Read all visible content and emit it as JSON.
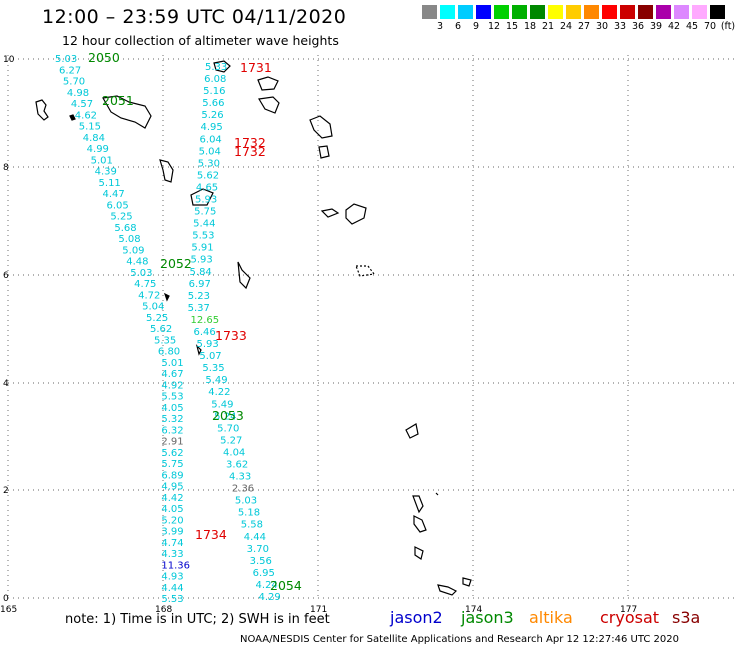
{
  "header": {
    "title": "12:00 – 23:59 UTC 04/11/2020",
    "subtitle": "12 hour collection of altimeter wave heights"
  },
  "legend": {
    "colors": [
      "#888888",
      "#00ffff",
      "#00ccff",
      "#0000ff",
      "#00d000",
      "#00b000",
      "#008800",
      "#ffff00",
      "#ffcc00",
      "#ff8800",
      "#ff0000",
      "#cc0000",
      "#880000",
      "#aa00aa",
      "#dd88ff",
      "#ffaaff",
      "#000000"
    ],
    "labels": [
      "3",
      "6",
      "9",
      "12",
      "15",
      "18",
      "21",
      "24",
      "27",
      "30",
      "33",
      "36",
      "39",
      "42",
      "45",
      "70",
      "(ft)"
    ]
  },
  "axes": {
    "x_ticks": [
      "165",
      "168",
      "171",
      "174",
      "177"
    ],
    "y_ticks": [
      "0",
      "2",
      "4",
      "6",
      "8",
      "10"
    ]
  },
  "tracks": [
    {
      "times": [
        {
          "label": "2050",
          "y": 10
        },
        {
          "label": "2051",
          "y": 9.1
        },
        {
          "label": "2052",
          "y": 6.2
        },
        {
          "label": "2053",
          "y": 3.3
        },
        {
          "label": "2054",
          "y": 0.3
        }
      ],
      "values": [
        "5.03",
        "6.27",
        "5.70",
        "4.98",
        "4.57",
        "4.62",
        "5.15",
        "4.84",
        "4.99",
        "5.01",
        "4.39",
        "5.11",
        "4.47",
        "6.05",
        "5.25",
        "5.68",
        "5.08",
        "5.09",
        "4.48",
        "5.03",
        "4.75",
        "4.72",
        "5.04",
        "5.25",
        "5.62",
        "5.35",
        "6.80",
        "5.01",
        "4.67",
        "4.92",
        "5.53",
        "4.05",
        "5.32",
        "6.32",
        "2.91",
        "5.62",
        "5.75",
        "6.89",
        "4.95",
        "4.42",
        "4.05",
        "5.20",
        "3.99",
        "4.74",
        "4.33",
        "11.36",
        "4.93",
        "4.44",
        "5.53"
      ]
    },
    {
      "times": [
        {
          "label": "1731",
          "y": 9.8
        },
        {
          "label": "1732",
          "y": 8.5
        },
        {
          "label": "1732",
          "y": 8.4
        },
        {
          "label": "1733",
          "y": 4.9
        },
        {
          "label": "1734",
          "y": 1.1
        }
      ],
      "values": [
        "5.33",
        "6.08",
        "5.16",
        "5.66",
        "5.26",
        "4.95",
        "6.04",
        "5.04",
        "5.30",
        "5.62",
        "4.65",
        "5.93",
        "5.75",
        "5.44",
        "5.53",
        "5.91",
        "5.93",
        "5.84",
        "6.97",
        "5.23",
        "5.37",
        "12.65",
        "6.46",
        "5.93",
        "5.07",
        "5.35",
        "5.49",
        "4.22",
        "5.49",
        "5.24",
        "5.70",
        "5.27",
        "4.04",
        "3.62",
        "4.33",
        "2.36",
        "5.03",
        "5.18",
        "5.58",
        "4.44",
        "3.70",
        "3.56",
        "6.95",
        "4.24",
        "4.29"
      ]
    }
  ],
  "footer": {
    "note": "note:  1) Time is in UTC;  2) SWH is in feet",
    "satellites": [
      {
        "name": "jason2",
        "color": "#0000cc"
      },
      {
        "name": "jason3",
        "color": "#008800"
      },
      {
        "name": "altika",
        "color": "#ff8800"
      },
      {
        "name": "cryosat",
        "color": "#cc0000"
      },
      {
        "name": "s3a",
        "color": "#880000"
      }
    ],
    "credit": "NOAA/NESDIS Center for Satellite Applications and Research     Apr 12 12:27:46 UTC 2020"
  }
}
